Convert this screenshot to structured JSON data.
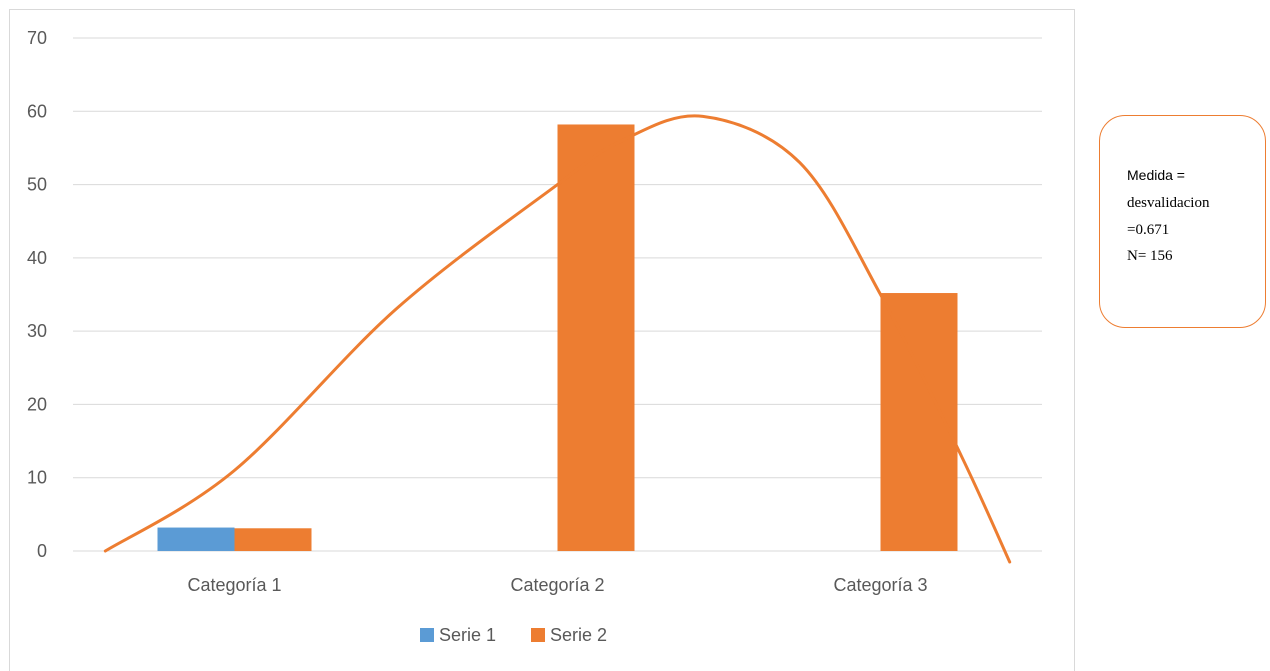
{
  "chart_data": {
    "type": "bar",
    "title": "",
    "xlabel": "",
    "ylabel": "",
    "categories": [
      "Categoría 1",
      "Categoría 2",
      "Categoría 3"
    ],
    "series": [
      {
        "name": "Serie 1",
        "values": [
          3.2,
          null,
          null
        ],
        "color": "#5b9bd5"
      },
      {
        "name": "Serie 2",
        "values": [
          3.1,
          58.2,
          35.2
        ],
        "color": "#ed7d31"
      }
    ],
    "curve": {
      "color": "#ed7d31",
      "x": [
        0.6,
        1.0,
        1.5,
        2.0,
        2.2,
        2.45,
        2.75,
        3.0,
        3.25,
        3.4
      ],
      "y": [
        0,
        11,
        33,
        50,
        56,
        59.3,
        53,
        35,
        13,
        -1.5
      ]
    },
    "yticks": [
      0,
      10,
      20,
      30,
      40,
      50,
      60,
      70
    ],
    "ylim": [
      0,
      70
    ],
    "grid": true,
    "legend_position": "bottom"
  },
  "annotation": {
    "line1": "Medida =",
    "line2": "desvalidacion",
    "line3": "=0.671",
    "line4": "N= 156",
    "border_color": "#ed7d31"
  }
}
